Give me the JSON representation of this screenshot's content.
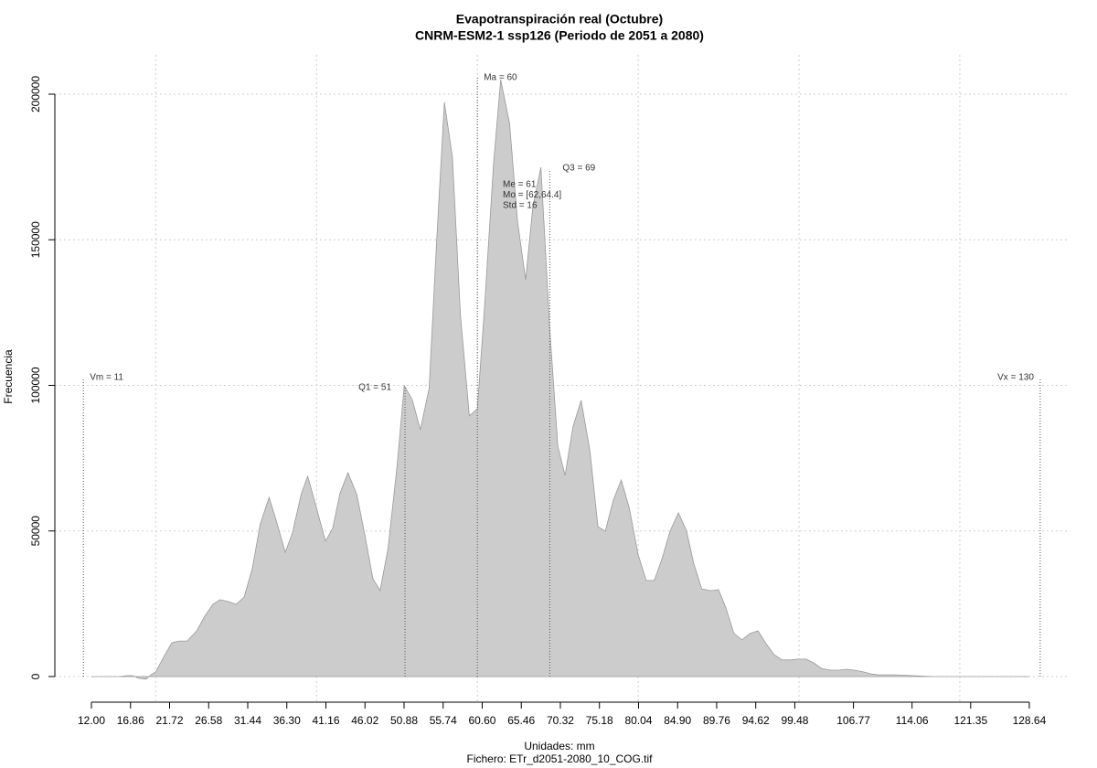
{
  "chart_data": {
    "type": "area",
    "title": [
      "Evapotranspiración real (Octubre)",
      "CNRM-ESM2-1 ssp126 (Periodo de 2051 a 2080)"
    ],
    "xlabel": "Unidades: mm",
    "file_label": "Fichero: ETr_d2051-2080_10_COG.tif",
    "ylabel": "Frecuencia",
    "color": "#cccccc",
    "line_color": "#999999",
    "x": [
      12.0,
      15.4,
      16.5,
      17.1,
      17.9,
      18.8,
      19.4,
      20.0,
      20.9,
      22.0,
      22.9,
      23.9,
      25.1,
      26.1,
      27.1,
      28.0,
      29.1,
      30.0,
      31.0,
      32.0,
      33.0,
      34.1,
      35.0,
      36.1,
      37.0,
      38.1,
      38.9,
      40.0,
      41.1,
      42.0,
      42.9,
      43.9,
      45.0,
      46.0,
      47.0,
      47.9,
      48.9,
      50.0,
      50.9,
      51.9,
      52.9,
      54.0,
      54.9,
      55.9,
      56.9,
      57.9,
      59.0,
      60.0,
      60.9,
      62.0,
      62.9,
      64.0,
      65.0,
      66.0,
      66.9,
      67.9,
      69.0,
      70.0,
      70.9,
      71.9,
      72.9,
      74.0,
      75.0,
      75.9,
      76.9,
      77.9,
      78.9,
      80.0,
      81.0,
      82.0,
      82.9,
      84.0,
      85.0,
      86.0,
      86.9,
      87.9,
      89.0,
      90.0,
      90.9,
      91.9,
      92.9,
      93.9,
      94.9,
      95.9,
      96.9,
      97.9,
      98.9,
      99.9,
      100.9,
      101.8,
      102.8,
      103.9,
      104.9,
      105.9,
      106.9,
      108.0,
      109.0,
      110.0,
      112.0,
      114.3,
      116.6,
      128.6
    ],
    "values": [
      0,
      0,
      300,
      300,
      -600,
      -900,
      600,
      1600,
      6300,
      11600,
      12200,
      12200,
      15700,
      20700,
      24800,
      26400,
      25700,
      24800,
      27300,
      37000,
      52400,
      61500,
      53400,
      42700,
      49300,
      62800,
      68800,
      57800,
      46500,
      50900,
      62800,
      70000,
      62500,
      48700,
      33600,
      29500,
      44300,
      72200,
      99900,
      95100,
      84800,
      98900,
      147600,
      197200,
      178400,
      124000,
      89500,
      92000,
      127200,
      175800,
      205000,
      190000,
      156100,
      136300,
      161400,
      174900,
      119300,
      79100,
      69100,
      86000,
      94800,
      77600,
      51500,
      49900,
      60600,
      67500,
      57800,
      41800,
      33000,
      33000,
      39900,
      50200,
      56200,
      50200,
      38900,
      30100,
      29500,
      29800,
      23600,
      14800,
      12600,
      14800,
      15700,
      11300,
      7500,
      5700,
      5700,
      6000,
      6000,
      4700,
      2800,
      2200,
      2200,
      2500,
      2200,
      1600,
      900,
      600,
      600,
      300,
      0,
      0
    ],
    "xlim": [
      7.45,
      133.65
    ],
    "ylim": [
      -8800,
      213500
    ],
    "xticks": [
      {
        "value": 12,
        "label": "12.00"
      },
      16.86,
      21.72,
      26.58,
      31.44,
      {
        "value": 36.3,
        "label": "36.30"
      },
      41.16,
      46.02,
      50.88,
      55.74,
      {
        "value": 60.6,
        "label": "60.60"
      },
      65.46,
      70.32,
      75.18,
      80.04,
      {
        "value": 84.9,
        "label": "84.90"
      },
      89.76,
      94.62,
      99.48,
      106.77,
      114.06,
      121.35,
      128.64
    ],
    "yticks": [
      0,
      50000,
      100000,
      150000,
      200000
    ],
    "xgrid": [
      20,
      40,
      60,
      80,
      100,
      120
    ],
    "grid": true,
    "markers": [
      {
        "label": "Vm = 11",
        "value": 11
      },
      {
        "label": "Q1 = 51",
        "value": 51
      },
      {
        "label": "Ma = 60",
        "value": 60
      },
      {
        "label": "Q3 = 69",
        "value": 69
      },
      {
        "label": "Vx = 130",
        "value": 130
      }
    ],
    "stats": [
      "Me = 61",
      "Mo = [62,64.4]",
      "Std = 16"
    ]
  }
}
